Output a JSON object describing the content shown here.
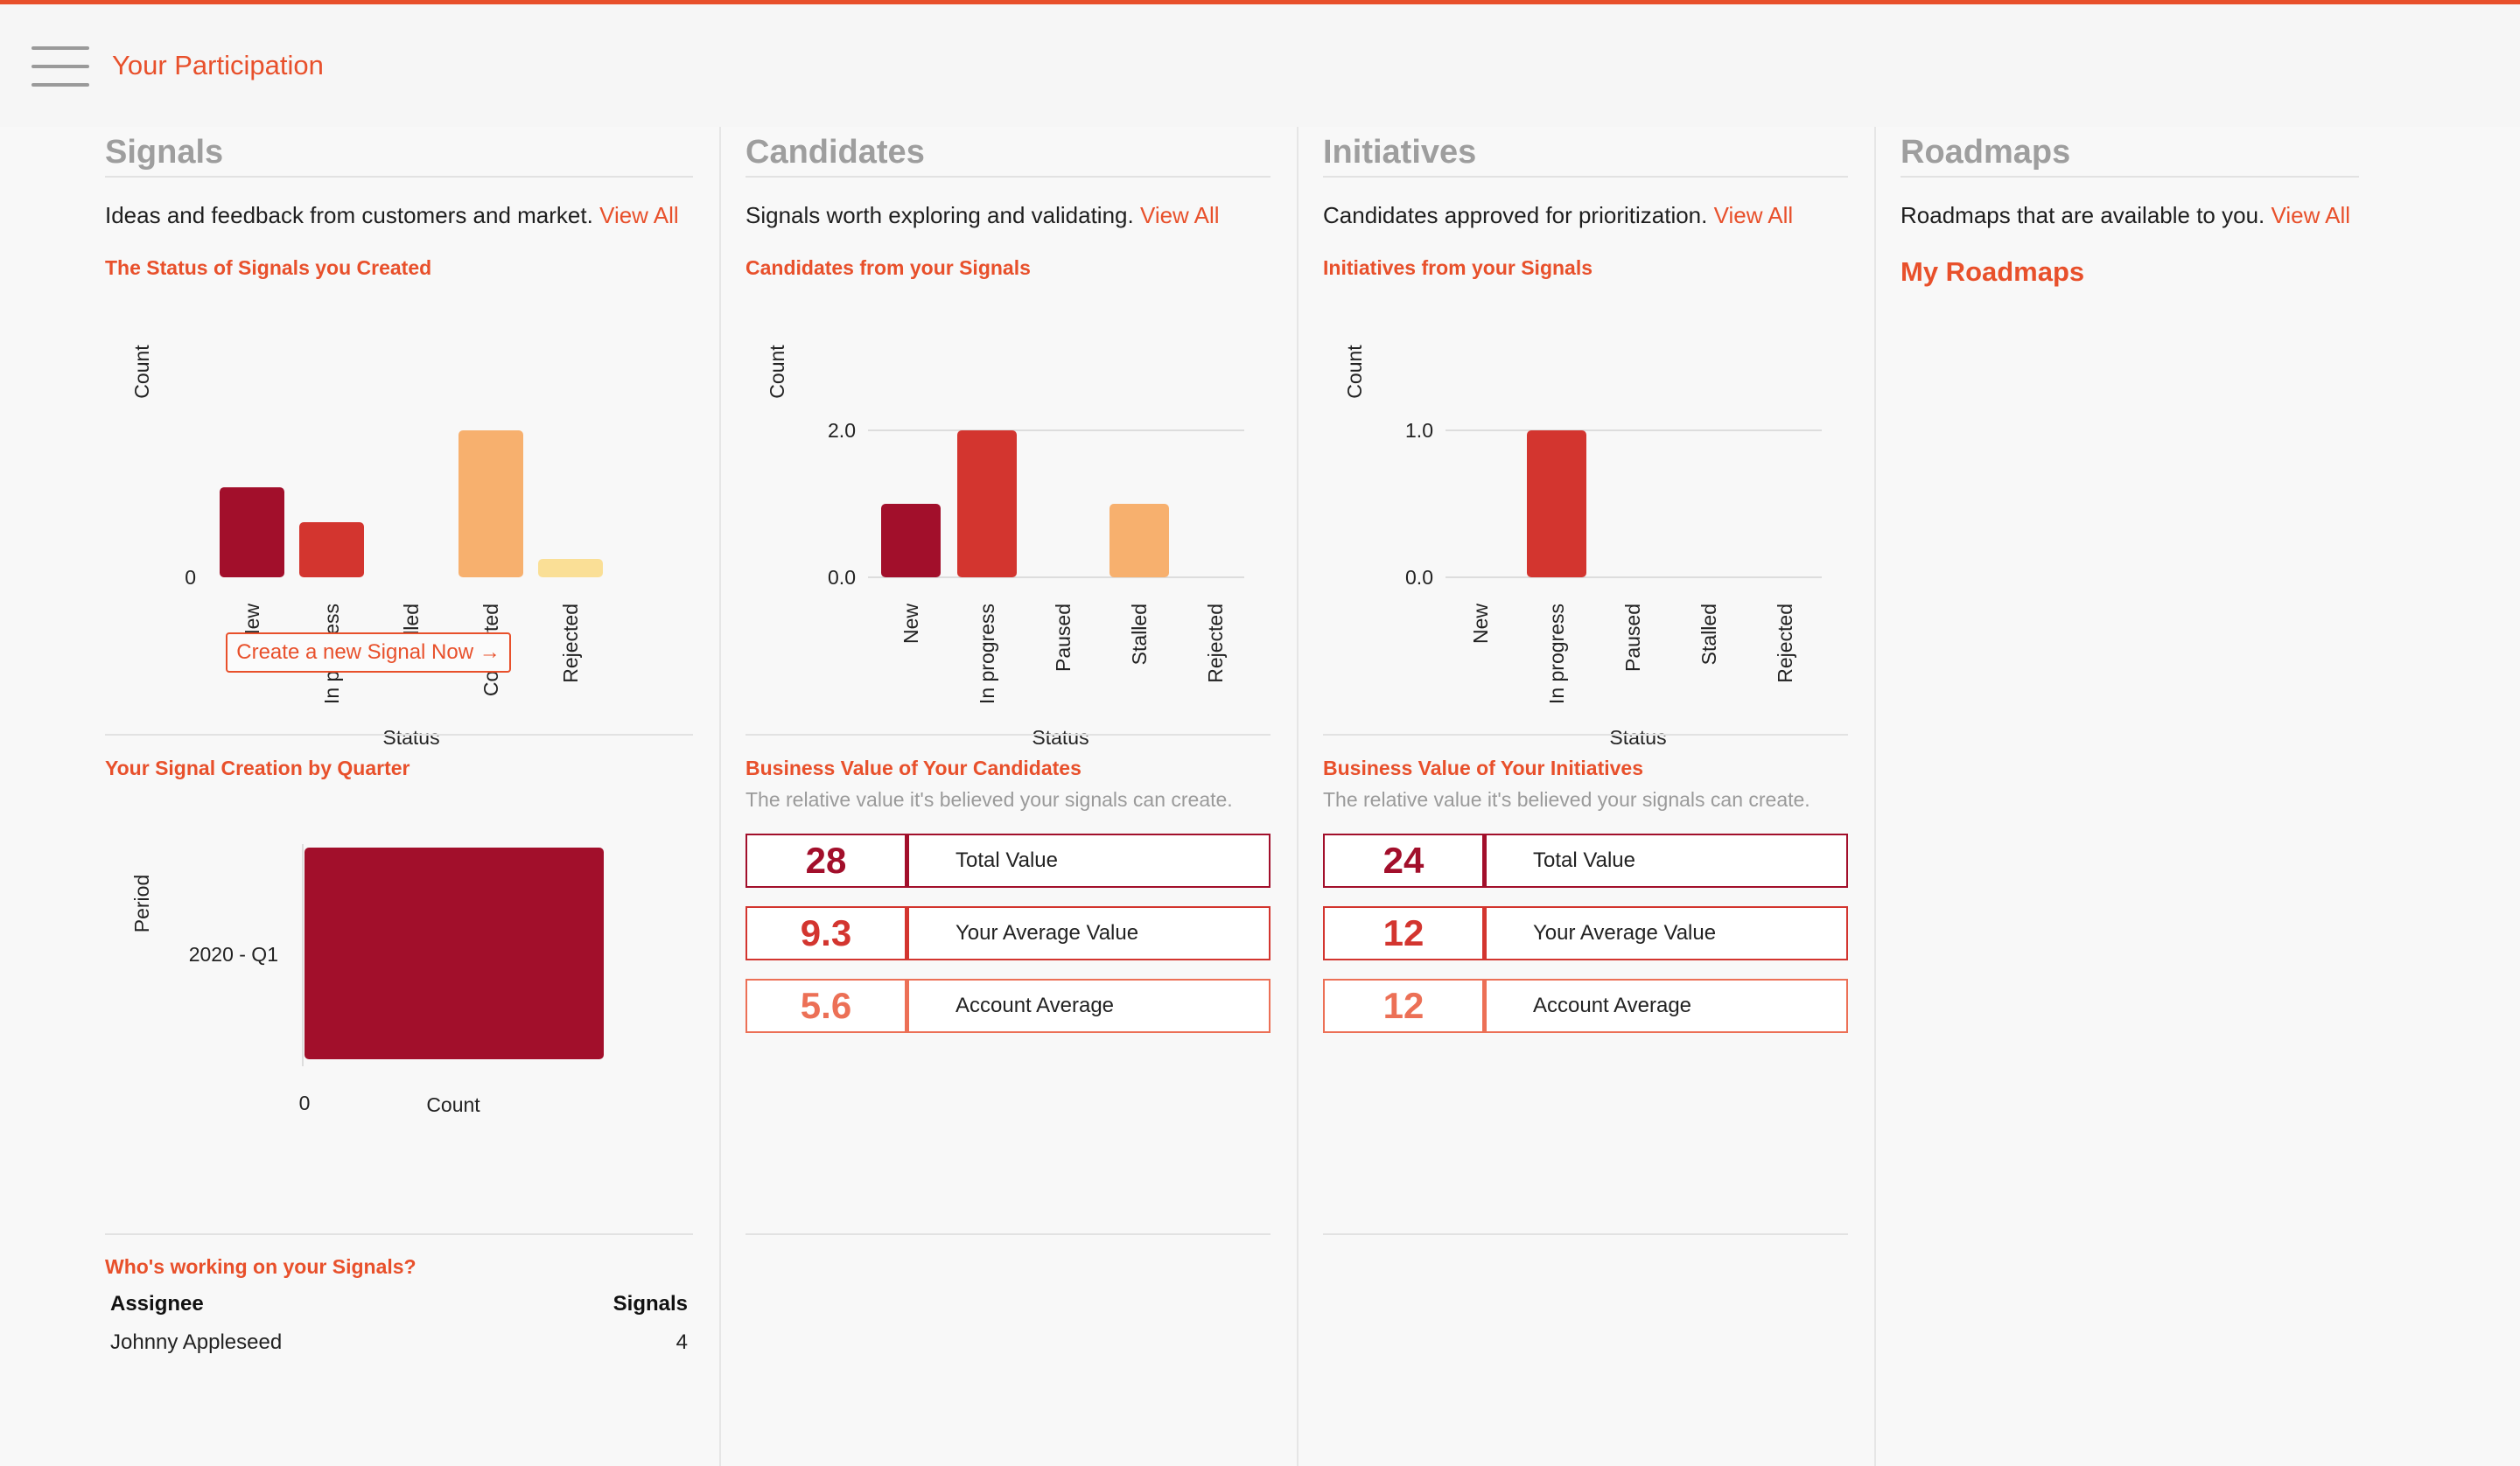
{
  "header": {
    "title": "Your Participation"
  },
  "signals": {
    "title": "Signals",
    "desc": "Ideas and feedback from customers and market.",
    "view_all": "View All",
    "status_chart_title": "The Status of Signals you Created",
    "cta": "Create a new Signal Now →",
    "quarter_chart_title": "Your Signal Creation by Quarter",
    "workers_title": "Who's working on your Signals?",
    "workers_table": {
      "headers": [
        "Assignee",
        "Signals"
      ],
      "rows": [
        [
          "Johnny Appleseed",
          "4"
        ]
      ]
    }
  },
  "candidates": {
    "title": "Candidates",
    "desc": "Signals worth exploring and validating.",
    "view_all": "View All",
    "chart_title": "Candidates from your Signals",
    "value_title": "Business Value of Your Candidates",
    "value_sub": "The relative value it's believed your signals can create.",
    "values": [
      {
        "num": "28",
        "label": "Total Value"
      },
      {
        "num": "9.3",
        "label": "Your Average Value"
      },
      {
        "num": "5.6",
        "label": "Account Average"
      }
    ]
  },
  "initiatives": {
    "title": "Initiatives",
    "desc": "Candidates approved for prioritization.",
    "view_all": "View All",
    "chart_title": "Initiatives from your Signals",
    "value_title": "Business Value of Your Initiatives",
    "value_sub": "The relative value it's believed your signals can create.",
    "values": [
      {
        "num": "24",
        "label": "Total Value"
      },
      {
        "num": "12",
        "label": "Your Average Value"
      },
      {
        "num": "12",
        "label": "Account Average"
      }
    ]
  },
  "roadmaps": {
    "title": "Roadmaps",
    "desc": "Roadmaps that are available to you.",
    "view_all": "View All",
    "my_roadmaps": "My Roadmaps"
  },
  "chart_data": [
    {
      "id": "signals-status",
      "type": "bar",
      "title": "The Status of Signals you Created",
      "xlabel": "Status",
      "ylabel": "Count",
      "categories": [
        "New",
        "In progress",
        "Stalled",
        "Converted",
        "Rejected"
      ],
      "values": [
        0.98,
        0.6,
        0,
        1.6,
        0.2
      ],
      "ylim": [
        0,
        1.6
      ],
      "yticks": [
        "0"
      ],
      "colors": [
        "#a20f2b",
        "#d3352f",
        "#e86a4e",
        "#f7b06e",
        "#fadf96"
      ]
    },
    {
      "id": "signals-quarter",
      "type": "bar",
      "orientation": "horizontal",
      "title": "Your Signal Creation by Quarter",
      "xlabel": "Count",
      "ylabel": "Period",
      "categories": [
        "2020 - Q1"
      ],
      "values": [
        4
      ],
      "xticks": [
        "0"
      ],
      "colors": [
        "#a20f2b"
      ]
    },
    {
      "id": "candidates",
      "type": "bar",
      "title": "Candidates from your Signals",
      "xlabel": "Status",
      "ylabel": "Count",
      "categories": [
        "New",
        "In progress",
        "Paused",
        "Stalled",
        "Rejected"
      ],
      "values": [
        1,
        2,
        0,
        1,
        0
      ],
      "ylim": [
        0,
        2
      ],
      "yticks": [
        "2.0",
        "0.0"
      ],
      "colors": [
        "#a20f2b",
        "#d3352f",
        "#e86a4e",
        "#f7b06e",
        "#fadf96"
      ]
    },
    {
      "id": "initiatives",
      "type": "bar",
      "title": "Initiatives from your Signals",
      "xlabel": "Status",
      "ylabel": "Count",
      "categories": [
        "New",
        "In progress",
        "Paused",
        "Stalled",
        "Rejected"
      ],
      "values": [
        0,
        1,
        0,
        0,
        0
      ],
      "ylim": [
        0,
        1
      ],
      "yticks": [
        "1.0",
        "0.0"
      ],
      "colors": [
        "#a20f2b",
        "#d3352f",
        "#e86a4e",
        "#f7b06e",
        "#fadf96"
      ]
    }
  ]
}
